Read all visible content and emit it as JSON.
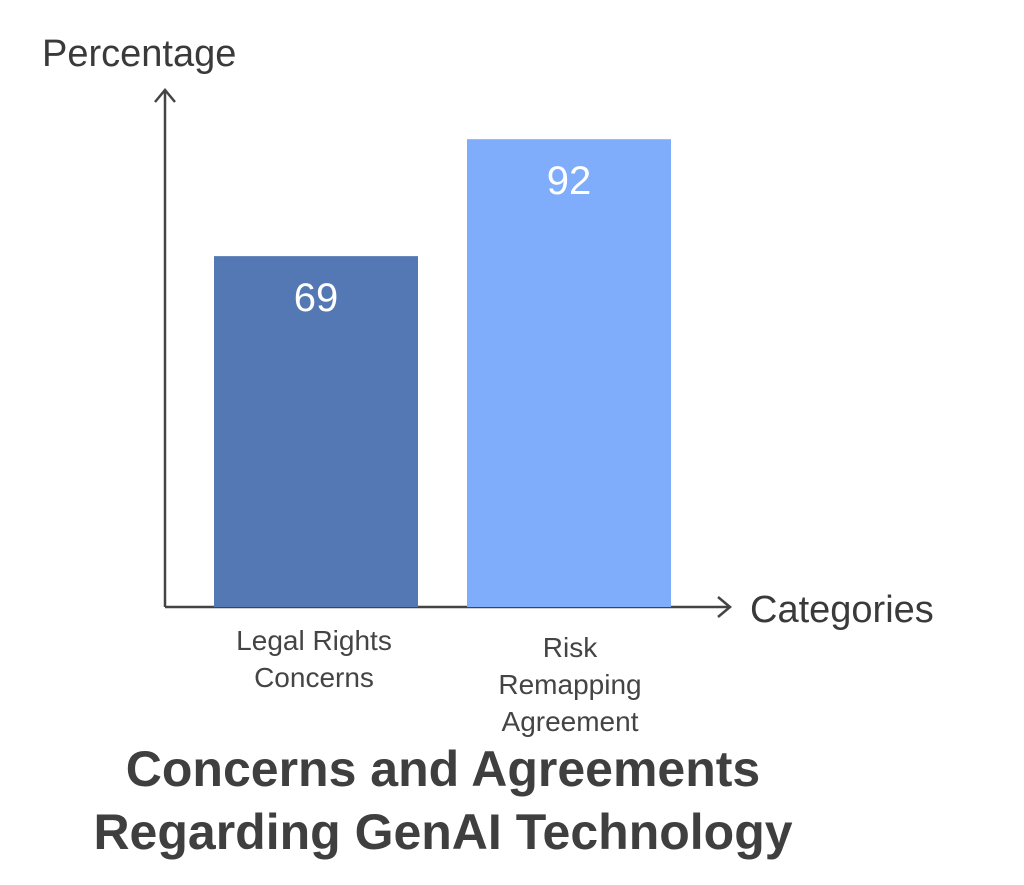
{
  "chart_data": {
    "type": "bar",
    "categories": [
      "Legal Rights Concerns",
      "Risk Remapping Agreement"
    ],
    "category_lines": [
      [
        "Legal Rights",
        "Concerns"
      ],
      [
        "Risk",
        "Remapping",
        "Agreement"
      ]
    ],
    "values": [
      69,
      92
    ],
    "data_labels": [
      "69",
      "92"
    ],
    "title": "Concerns and Agreements Regarding GenAI Technology",
    "title_lines": [
      "Concerns and Agreements",
      "Regarding GenAI Technology"
    ],
    "xlabel": "Categories",
    "ylabel": "Percentage",
    "ylim": [
      0,
      100
    ],
    "grid": false,
    "legend": "none",
    "colors": [
      "#5478b3",
      "#7fadfc"
    ]
  }
}
